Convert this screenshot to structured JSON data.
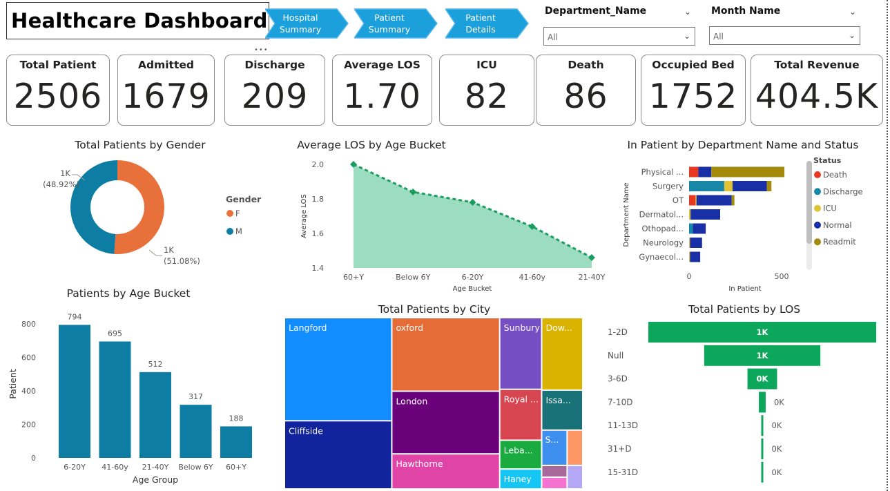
{
  "header": {
    "title": "Healthcare Dashboard",
    "nav": [
      {
        "line1": "Hospital",
        "line2": "Summary"
      },
      {
        "line1": "Patient",
        "line2": "Summary"
      },
      {
        "line1": "Patient",
        "line2": "Details"
      }
    ],
    "slicers": [
      {
        "label": "Department_Name",
        "value": "All"
      },
      {
        "label": "Month Name",
        "value": "All"
      }
    ]
  },
  "kpis": [
    {
      "label": "Total Patient",
      "value": "2506"
    },
    {
      "label": "Admitted",
      "value": "1679"
    },
    {
      "label": "Discharge",
      "value": "209"
    },
    {
      "label": "Average LOS",
      "value": "1.70"
    },
    {
      "label": "ICU",
      "value": "82"
    },
    {
      "label": "Death",
      "value": "86"
    },
    {
      "label": "Occupied Bed",
      "value": "1752"
    },
    {
      "label": "Total Revenue",
      "value": "404.5K"
    }
  ],
  "colors": {
    "nav": "#1ba0db",
    "female": "#e8703a",
    "male": "#0e7da3",
    "los_area": "#9cdcc0",
    "los_line": "#1a9e5f",
    "age_bar": "#0e7da3",
    "funnel": "#0ca75b",
    "death": "#e8381f",
    "discharge": "#1888a8",
    "icu": "#e1c233",
    "normal": "#182fa5",
    "readmit": "#a38a0a"
  },
  "chart_data": [
    {
      "id": "gender",
      "type": "pie",
      "title": "Total Patients by Gender",
      "legend_title": "Gender",
      "legend_position": "right",
      "slices": [
        {
          "name": "F",
          "value": 51.08,
          "label": "1K",
          "pct": "(51.08%)"
        },
        {
          "name": "M",
          "value": 48.92,
          "label": "1K",
          "pct": "(48.92%)"
        }
      ]
    },
    {
      "id": "los_age",
      "type": "area",
      "title": "Average LOS by Age Bucket",
      "xlabel": "Age Bucket",
      "ylabel": "Average LOS",
      "categories": [
        "60+Y",
        "Below 6Y",
        "6-20Y",
        "41-60y",
        "21-40Y"
      ],
      "values": [
        2.0,
        1.84,
        1.78,
        1.64,
        1.46
      ],
      "ylim": [
        1.4,
        2.0
      ],
      "yticks": [
        "1.4",
        "1.6",
        "1.8",
        "2.0"
      ]
    },
    {
      "id": "dept_status",
      "type": "bar",
      "orientation": "horizontal",
      "stacked": true,
      "title": "In Patient by Department Name and Status",
      "xlabel": "In Patient",
      "ylabel": "Department Name",
      "xlim": [
        0,
        500
      ],
      "xticks": [
        "0",
        "500"
      ],
      "legend_title": "Status",
      "legend_position": "right",
      "categories": [
        "Physical ...",
        "Surgery",
        "OT",
        "Dermatol...",
        "Othopad...",
        "Neurology",
        "Gynaecol..."
      ],
      "series": [
        {
          "name": "Death",
          "values": [
            50,
            0,
            35,
            0,
            0,
            0,
            0
          ]
        },
        {
          "name": "Discharge",
          "values": [
            0,
            190,
            0,
            0,
            20,
            0,
            0
          ]
        },
        {
          "name": "ICU",
          "values": [
            0,
            45,
            5,
            8,
            0,
            5,
            5
          ]
        },
        {
          "name": "Normal",
          "values": [
            70,
            185,
            190,
            160,
            70,
            65,
            55
          ]
        },
        {
          "name": "Readmit",
          "values": [
            395,
            25,
            15,
            0,
            0,
            0,
            0
          ]
        }
      ]
    },
    {
      "id": "age_bucket",
      "type": "bar",
      "title": "Patients by Age Bucket",
      "xlabel": "Age Group",
      "ylabel": "Patient",
      "categories": [
        "6-20Y",
        "41-60y",
        "21-40Y",
        "Below 6Y",
        "60+Y"
      ],
      "values": [
        794,
        695,
        512,
        317,
        188
      ],
      "ylim": [
        0,
        900
      ],
      "yticks": [
        "0",
        "200",
        "400",
        "600",
        "800"
      ]
    },
    {
      "id": "city",
      "type": "treemap",
      "title": "Total Patients by City",
      "items": [
        {
          "name": "Langford",
          "value": 357,
          "color": "#118dff"
        },
        {
          "name": "Cliffside",
          "value": 236,
          "color": "#12239e"
        },
        {
          "name": "oxford",
          "value": 256,
          "color": "#e66c37"
        },
        {
          "name": "London",
          "value": 218,
          "color": "#6b007b"
        },
        {
          "name": "Hawthorne",
          "value": 122,
          "color": "#e044a7"
        },
        {
          "name": "Sunbury",
          "value": 97,
          "color": "#744ec2"
        },
        {
          "name": "Dow...",
          "value": 96,
          "color": "#d9b300"
        },
        {
          "name": "Royal ...",
          "value": 69,
          "color": "#d64550"
        },
        {
          "name": "Issa...",
          "value": 53,
          "color": "#197278"
        },
        {
          "name": "Leba...",
          "value": 39,
          "color": "#1aab40"
        },
        {
          "name": "S...",
          "value": 23,
          "color": "#3d8eed"
        },
        {
          "name": "Haney",
          "value": 27,
          "color": "#15c6f4"
        },
        {
          "name": "",
          "value": 17,
          "color": "#fe9666"
        },
        {
          "name": "",
          "value": 16,
          "color": "#a66999"
        },
        {
          "name": "",
          "value": 14,
          "color": "#f472d0"
        },
        {
          "name": "",
          "value": 8,
          "color": "#b4a7f5"
        }
      ]
    },
    {
      "id": "los_funnel",
      "type": "bar",
      "orientation": "funnel",
      "title": "Total Patients by LOS",
      "categories": [
        "1-2D",
        "Null",
        "3-6D",
        "7-10D",
        "11-13D",
        "31+D",
        "15-31D"
      ],
      "values": [
        1000,
        510,
        130,
        30,
        6,
        4,
        3
      ],
      "labels": [
        "1K",
        "1K",
        "0K",
        "0K",
        "0K",
        "0K",
        "0K"
      ]
    }
  ]
}
